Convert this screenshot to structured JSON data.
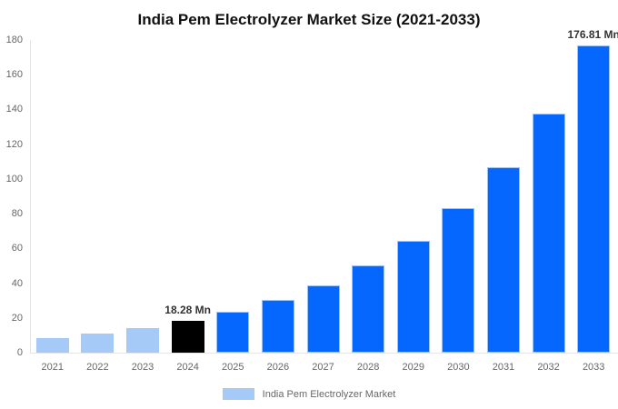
{
  "title": "India Pem Electrolyzer Market Size (2021-2033)",
  "legend": {
    "label": "India Pem Electrolyzer Market",
    "swatch_color": "#A6CAF7"
  },
  "colors": {
    "historical_bar": "#A6CAF7",
    "base_year_bar": "#000000",
    "forecast_bar": "#0667FE",
    "forecast_bar_border": "#9EC3F7",
    "axis_line": "#E3E3E3",
    "tick_text": "#666666",
    "annotation_text": "#333333",
    "title_text": "#111111"
  },
  "chart_data": {
    "type": "bar",
    "title": "India Pem Electrolyzer Market Size (2021-2033)",
    "xlabel": "",
    "ylabel": "",
    "unit": "Mn",
    "categories": [
      "2021",
      "2022",
      "2023",
      "2024",
      "2025",
      "2026",
      "2027",
      "2028",
      "2029",
      "2030",
      "2031",
      "2032",
      "2033"
    ],
    "values": [
      8.58,
      11.04,
      14.21,
      18.28,
      23.52,
      30.27,
      38.95,
      50.12,
      64.49,
      82.98,
      106.78,
      137.4,
      176.81
    ],
    "bar_colors": [
      "#A6CAF7",
      "#A6CAF7",
      "#A6CAF7",
      "#000000",
      "#0667FE",
      "#0667FE",
      "#0667FE",
      "#0667FE",
      "#0667FE",
      "#0667FE",
      "#0667FE",
      "#0667FE",
      "#0667FE"
    ],
    "bar_border_colors": [
      "#A6CAF7",
      "#A6CAF7",
      "#A6CAF7",
      "#000000",
      "#9EC3F7",
      "#9EC3F7",
      "#9EC3F7",
      "#9EC3F7",
      "#9EC3F7",
      "#9EC3F7",
      "#9EC3F7",
      "#9EC3F7",
      "#9EC3F7"
    ],
    "annotations": [
      {
        "index": 3,
        "label": "18.28 Mn"
      },
      {
        "index": 12,
        "label": "176.81 Mn"
      }
    ],
    "ylim": [
      0,
      180
    ],
    "ytick_step": 20,
    "ytick_labels": [
      "0",
      "20",
      "40",
      "60",
      "80",
      "100",
      "120",
      "140",
      "160",
      "180"
    ],
    "grid": false,
    "legend_position": "bottom",
    "legend_entries": [
      "India Pem Electrolyzer Market"
    ]
  }
}
